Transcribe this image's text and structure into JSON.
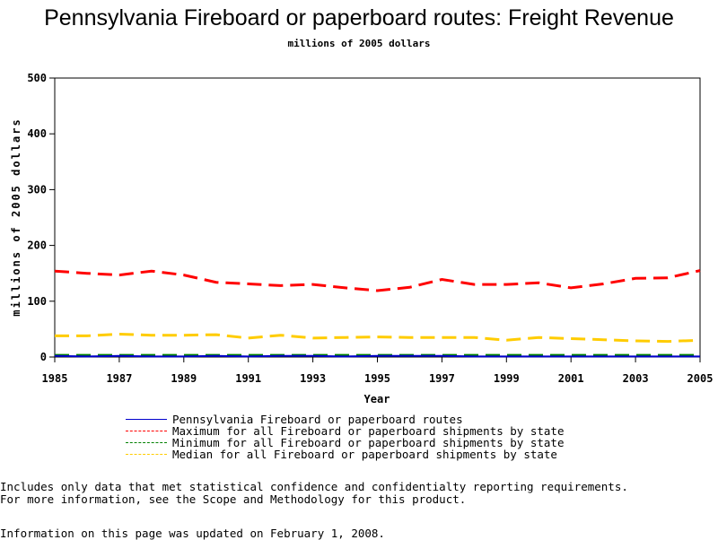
{
  "chart_data": {
    "type": "line",
    "title": "Pennsylvania Fireboard or paperboard routes: Freight Revenue",
    "subtitle": "millions of 2005 dollars",
    "xlabel": "Year",
    "ylabel": "millions of 2005 dollars",
    "xlim": [
      1985,
      2005
    ],
    "ylim": [
      0,
      500
    ],
    "x_ticks": [
      "1985",
      "1987",
      "1989",
      "1991",
      "1993",
      "1995",
      "1997",
      "1999",
      "2001",
      "2003",
      "2005"
    ],
    "y_ticks": [
      "0",
      "100",
      "200",
      "300",
      "400",
      "500"
    ],
    "x": [
      1985,
      1986,
      1987,
      1988,
      1989,
      1990,
      1991,
      1992,
      1993,
      1994,
      1995,
      1996,
      1997,
      1998,
      1999,
      2000,
      2001,
      2002,
      2003,
      2004,
      2005
    ],
    "series": [
      {
        "name": "Pennsylvania Fireboard or paperboard routes",
        "color": "#0000cc",
        "dash": "solid",
        "values": [
          2,
          1,
          2,
          1,
          1,
          2,
          1,
          2,
          2,
          1,
          2,
          2,
          2,
          1,
          1,
          1,
          1,
          1,
          1,
          1,
          1
        ]
      },
      {
        "name": "Maximum for all Fireboard or paperboard shipments by state",
        "color": "#ff0000",
        "dash": "dashed",
        "values": [
          154,
          150,
          147,
          154,
          147,
          134,
          131,
          128,
          130,
          124,
          119,
          125,
          139,
          130,
          130,
          133,
          124,
          131,
          141,
          142,
          155
        ]
      },
      {
        "name": "Minimum for all Fireboard or paperboard shipments by state",
        "color": "#008000",
        "dash": "dashed",
        "values": [
          3,
          3,
          3,
          3,
          3,
          3,
          3,
          3,
          3,
          3,
          3,
          3,
          3,
          3,
          3,
          3,
          3,
          3,
          3,
          3,
          3
        ]
      },
      {
        "name": "Median for all Fireboard or paperboard shipments by state",
        "color": "#ffcc00",
        "dash": "dashed",
        "values": [
          38,
          38,
          41,
          39,
          39,
          40,
          34,
          39,
          34,
          35,
          36,
          35,
          35,
          35,
          30,
          35,
          33,
          31,
          29,
          28,
          30
        ]
      }
    ],
    "grid": false,
    "legend_position": "bottom"
  },
  "notes": {
    "line1": "Includes only data that met statistical confidence and confidentialty reporting requirements.",
    "line2": "For more information, see the Scope and Methodology for this product.",
    "updated": "Information on this page was updated on February 1, 2008."
  }
}
